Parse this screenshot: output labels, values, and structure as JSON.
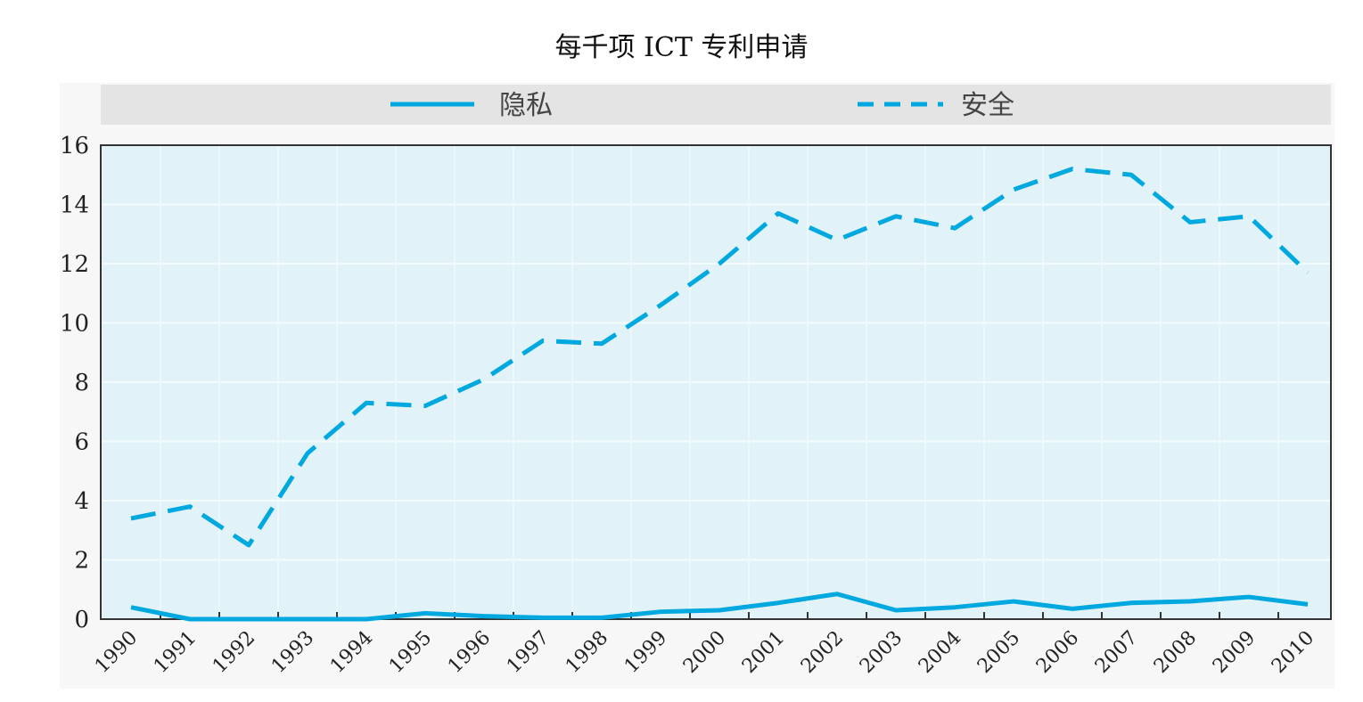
{
  "chart_data": {
    "type": "line",
    "title": "每千项 ICT 专利申请",
    "xlabel": "",
    "ylabel": "",
    "x": [
      "1990",
      "1991",
      "1992",
      "1993",
      "1994",
      "1995",
      "1996",
      "1997",
      "1998",
      "1999",
      "2000",
      "2001",
      "2002",
      "2003",
      "2004",
      "2005",
      "2006",
      "2007",
      "2008",
      "2009",
      "2010"
    ],
    "ylim": [
      0,
      16
    ],
    "yticks": [
      "0",
      "2",
      "4",
      "6",
      "8",
      "10",
      "12",
      "14",
      "16"
    ],
    "grid": true,
    "legend_position": "top",
    "series": [
      {
        "name": "隐私",
        "style": "solid",
        "color": "#00a8e0",
        "values": [
          0.4,
          0.0,
          0.0,
          0.0,
          0.0,
          0.2,
          0.1,
          0.05,
          0.05,
          0.25,
          0.3,
          0.55,
          0.85,
          0.3,
          0.4,
          0.6,
          0.35,
          0.55,
          0.6,
          0.75,
          0.5
        ]
      },
      {
        "name": "安全",
        "style": "dashed",
        "color": "#00a8e0",
        "values": [
          3.4,
          3.8,
          2.5,
          5.6,
          7.3,
          7.2,
          8.1,
          9.4,
          9.3,
          10.6,
          12.0,
          13.7,
          12.8,
          13.6,
          13.2,
          14.5,
          15.2,
          15.0,
          13.4,
          13.6,
          11.7
        ]
      }
    ]
  }
}
